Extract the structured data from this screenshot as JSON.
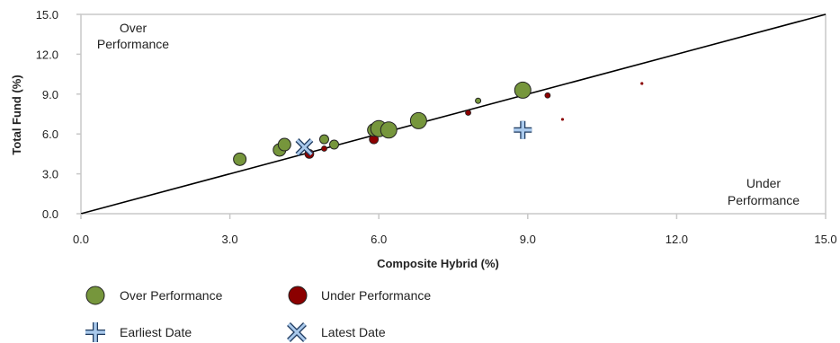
{
  "chart_data": {
    "type": "scatter",
    "xlabel": "Composite Hybrid  (%)",
    "ylabel": "Total Fund  (%)",
    "xlim": [
      0,
      15
    ],
    "ylim": [
      0,
      15
    ],
    "x_ticks": [
      "0.0",
      "3.0",
      "6.0",
      "9.0",
      "12.0",
      "15.0"
    ],
    "y_ticks": [
      "0.0",
      "3.0",
      "6.0",
      "9.0",
      "12.0",
      "15.0"
    ],
    "x_tick_values": [
      0,
      3,
      6,
      9,
      12,
      15
    ],
    "y_tick_values": [
      0,
      3,
      6,
      9,
      12,
      15
    ],
    "reference_line": {
      "from": [
        0,
        0
      ],
      "to": [
        15,
        15
      ]
    },
    "annotations": {
      "over": [
        "Over",
        "Performance"
      ],
      "under": [
        "Under",
        "Performance"
      ]
    },
    "colors": {
      "over": "#76963c",
      "under": "#8b0000",
      "marker_edge": "#222222",
      "earliest": "#a9c9ec",
      "latest": "#a9c9ec",
      "axis": "#c8c8c8",
      "line": "#000000",
      "text": "#222222"
    },
    "series": [
      {
        "name": "Over Performance",
        "legend_marker": "circle",
        "points": [
          {
            "x": 3.2,
            "y": 4.1,
            "size": 3
          },
          {
            "x": 4.0,
            "y": 4.8,
            "size": 3
          },
          {
            "x": 4.1,
            "y": 5.2,
            "size": 3
          },
          {
            "x": 4.9,
            "y": 5.6,
            "size": 2
          },
          {
            "x": 5.1,
            "y": 5.2,
            "size": 2
          },
          {
            "x": 5.9,
            "y": 6.3,
            "size": 3
          },
          {
            "x": 6.0,
            "y": 6.4,
            "size": 4
          },
          {
            "x": 6.2,
            "y": 6.3,
            "size": 4
          },
          {
            "x": 6.8,
            "y": 7.0,
            "size": 4
          },
          {
            "x": 8.0,
            "y": 8.5,
            "size": 1
          },
          {
            "x": 8.9,
            "y": 9.3,
            "size": 4
          }
        ]
      },
      {
        "name": "Under Performance",
        "legend_marker": "circle",
        "points": [
          {
            "x": 4.6,
            "y": 4.5,
            "size": 2
          },
          {
            "x": 4.9,
            "y": 4.9,
            "size": 1
          },
          {
            "x": 5.9,
            "y": 5.6,
            "size": 2
          },
          {
            "x": 7.8,
            "y": 7.6,
            "size": 1
          },
          {
            "x": 9.4,
            "y": 8.9,
            "size": 1
          },
          {
            "x": 9.7,
            "y": 7.1,
            "size": 0
          },
          {
            "x": 11.3,
            "y": 9.8,
            "size": 0
          }
        ]
      },
      {
        "name": "Earliest Date",
        "legend_marker": "plus",
        "points": [
          {
            "x": 8.9,
            "y": 6.3
          }
        ]
      },
      {
        "name": "Latest Date",
        "legend_marker": "x",
        "points": [
          {
            "x": 4.5,
            "y": 5.0
          }
        ]
      }
    ]
  }
}
